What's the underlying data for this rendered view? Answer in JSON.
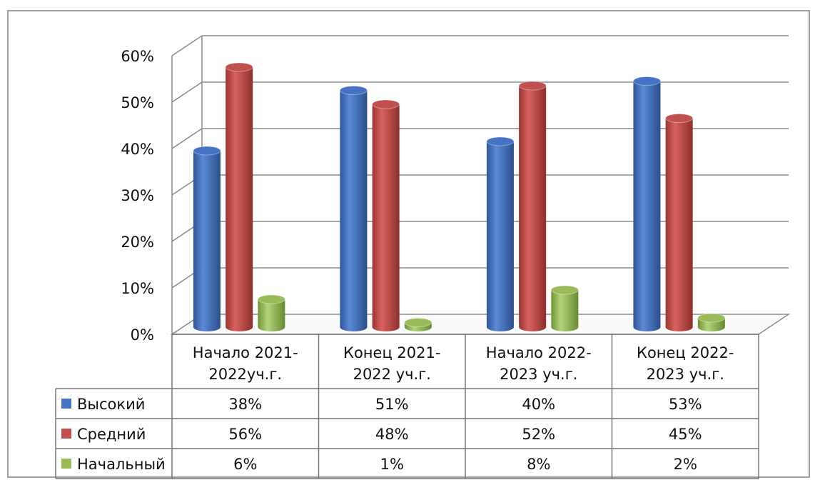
{
  "chart_data": {
    "type": "bar",
    "categories": [
      [
        "Начало  2021-",
        "2022уч.г."
      ],
      [
        "Конец 2021-",
        "2022 уч.г."
      ],
      [
        "Начало 2022-",
        "2023 уч.г."
      ],
      [
        "Конец 2022-",
        "2023 уч.г."
      ]
    ],
    "series": [
      {
        "name": "Высокий",
        "values": [
          38,
          51,
          40,
          53
        ],
        "labels": [
          "38%",
          "51%",
          "40%",
          "53%"
        ],
        "color": "#4472C4"
      },
      {
        "name": "Средний",
        "values": [
          56,
          48,
          52,
          45
        ],
        "labels": [
          "56%",
          "48%",
          "52%",
          "45%"
        ],
        "color": "#C0504D"
      },
      {
        "name": "Начальный",
        "values": [
          6,
          1,
          8,
          2
        ],
        "labels": [
          "6%",
          "1%",
          "8%",
          "2%"
        ],
        "color": "#9BBB59"
      }
    ],
    "y_ticks": [
      "0%",
      "10%",
      "20%",
      "30%",
      "40%",
      "50%",
      "60%"
    ],
    "ylim": [
      0,
      60
    ],
    "grid": true,
    "style": "3d-cylinder",
    "legend": "data-table"
  }
}
